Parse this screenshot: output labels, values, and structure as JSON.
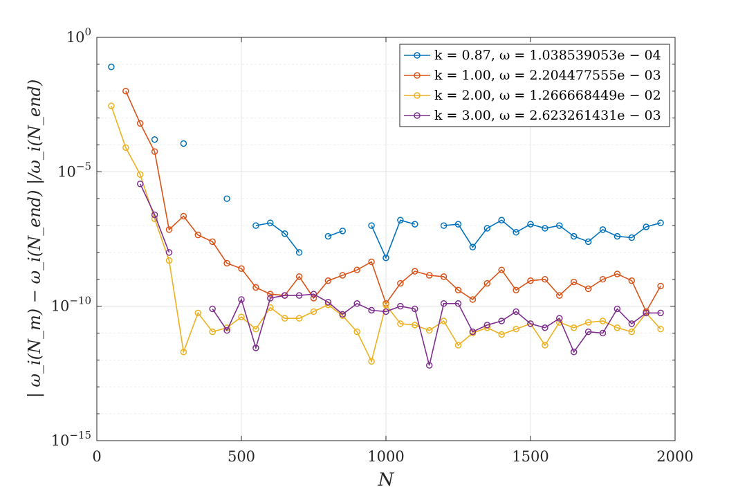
{
  "chart_data": {
    "type": "line",
    "xlabel": "N",
    "ylabel": "| ω_i(N_m) − ω_i(N_end) |/ω_i(N_end)",
    "xlim": [
      0,
      2000
    ],
    "ylim_exp": [
      -15,
      0
    ],
    "yscale": "log",
    "x_ticks": [
      "0",
      "500",
      "1000",
      "1500",
      "2000"
    ],
    "y_ticks": [
      {
        "base": "10",
        "exp": "0"
      },
      {
        "base": "10",
        "exp": "−5"
      },
      {
        "base": "10",
        "exp": "−10"
      },
      {
        "base": "10",
        "exp": "−15"
      }
    ],
    "grid": true,
    "legend_position": "top-right",
    "series": [
      {
        "name": "k = 0.87, ω = 1.038539053e − 04",
        "k": "0.87",
        "omega": "1.038539053e − 04",
        "color": "#0072BD",
        "points": [
          [
            50,
            -1.1
          ],
          [
            200,
            -3.8
          ],
          [
            300,
            -3.95
          ],
          [
            450,
            -6.0
          ],
          [
            550,
            -7.0
          ],
          [
            600,
            -6.9
          ],
          [
            650,
            -7.3
          ],
          [
            700,
            -8.0
          ],
          [
            800,
            -7.4
          ],
          [
            850,
            -7.2
          ],
          [
            950,
            -7.0
          ],
          [
            1000,
            -8.2
          ],
          [
            1050,
            -6.8
          ],
          [
            1100,
            -6.95
          ],
          [
            1200,
            -7.0
          ],
          [
            1250,
            -6.95
          ],
          [
            1300,
            -7.8
          ],
          [
            1350,
            -7.1
          ],
          [
            1400,
            -6.8
          ],
          [
            1450,
            -7.25
          ],
          [
            1500,
            -6.95
          ],
          [
            1550,
            -7.1
          ],
          [
            1600,
            -7.0
          ],
          [
            1650,
            -7.4
          ],
          [
            1700,
            -7.6
          ],
          [
            1750,
            -7.15
          ],
          [
            1800,
            -7.4
          ],
          [
            1850,
            -7.45
          ],
          [
            1900,
            -7.05
          ],
          [
            1950,
            -6.9
          ]
        ]
      },
      {
        "name": "k = 1.00, ω = 2.204477555e − 03",
        "k": "1.00",
        "omega": "2.204477555e − 03",
        "color": "#D95319",
        "points": [
          [
            100,
            -2.0
          ],
          [
            150,
            -3.2
          ],
          [
            200,
            -4.25
          ],
          [
            250,
            -7.15
          ],
          [
            300,
            -6.65
          ],
          [
            350,
            -7.35
          ],
          [
            400,
            -7.6
          ],
          [
            450,
            -8.4
          ],
          [
            500,
            -8.6
          ],
          [
            550,
            -9.3
          ],
          [
            600,
            -9.55
          ],
          [
            650,
            -9.6
          ],
          [
            700,
            -8.9
          ],
          [
            750,
            -9.7
          ],
          [
            800,
            -9.05
          ],
          [
            850,
            -8.85
          ],
          [
            900,
            -8.65
          ],
          [
            950,
            -8.35
          ],
          [
            1000,
            -9.9
          ],
          [
            1050,
            -9.15
          ],
          [
            1100,
            -8.7
          ],
          [
            1150,
            -8.85
          ],
          [
            1200,
            -8.9
          ],
          [
            1250,
            -9.4
          ],
          [
            1300,
            -9.75
          ],
          [
            1350,
            -9.15
          ],
          [
            1400,
            -8.65
          ],
          [
            1450,
            -9.4
          ],
          [
            1500,
            -9.05
          ],
          [
            1550,
            -9.0
          ],
          [
            1600,
            -9.6
          ],
          [
            1650,
            -9.1
          ],
          [
            1700,
            -9.35
          ],
          [
            1750,
            -9.0
          ],
          [
            1800,
            -8.8
          ],
          [
            1850,
            -9.05
          ],
          [
            1900,
            -10.2
          ],
          [
            1950,
            -9.25
          ]
        ]
      },
      {
        "name": "k = 2.00, ω = 1.266668449e − 02",
        "k": "2.00",
        "omega": "1.266668449e − 02",
        "color": "#EDB120",
        "points": [
          [
            50,
            -2.55
          ],
          [
            100,
            -4.1
          ],
          [
            150,
            -5.1
          ],
          [
            200,
            -6.75
          ],
          [
            250,
            -8.3
          ],
          [
            300,
            -11.7
          ],
          [
            350,
            -10.25
          ],
          [
            400,
            -10.95
          ],
          [
            450,
            -10.8
          ],
          [
            500,
            -10.4
          ],
          [
            550,
            -10.85
          ],
          [
            600,
            -10.05
          ],
          [
            650,
            -10.45
          ],
          [
            700,
            -10.45
          ],
          [
            750,
            -10.2
          ],
          [
            800,
            -9.95
          ],
          [
            850,
            -10.35
          ],
          [
            900,
            -10.95
          ],
          [
            950,
            -12.05
          ],
          [
            1000,
            -9.95
          ],
          [
            1050,
            -10.65
          ],
          [
            1100,
            -10.7
          ],
          [
            1150,
            -10.9
          ],
          [
            1200,
            -10.55
          ],
          [
            1250,
            -11.45
          ],
          [
            1300,
            -11.0
          ],
          [
            1350,
            -10.8
          ],
          [
            1400,
            -11.05
          ],
          [
            1450,
            -10.85
          ],
          [
            1500,
            -10.65
          ],
          [
            1550,
            -11.45
          ],
          [
            1600,
            -10.6
          ],
          [
            1650,
            -10.8
          ],
          [
            1700,
            -10.6
          ],
          [
            1750,
            -10.55
          ],
          [
            1800,
            -10.8
          ],
          [
            1850,
            -10.95
          ],
          [
            1900,
            -10.25
          ],
          [
            1950,
            -10.85
          ]
        ]
      },
      {
        "name": "k = 3.00, ω = 2.623261431e − 03",
        "k": "3.00",
        "omega": "2.623261431e − 03",
        "color": "#7E2F8E",
        "points": [
          [
            150,
            -5.45
          ],
          [
            200,
            -6.6
          ],
          [
            250,
            -8.0
          ],
          [
            400,
            -10.1
          ],
          [
            450,
            -10.9
          ],
          [
            500,
            -9.75
          ],
          [
            550,
            -11.55
          ],
          [
            600,
            -9.7
          ],
          [
            650,
            -9.6
          ],
          [
            700,
            -9.6
          ],
          [
            750,
            -9.55
          ],
          [
            800,
            -9.85
          ],
          [
            850,
            -10.3
          ],
          [
            900,
            -9.9
          ],
          [
            950,
            -10.15
          ],
          [
            1000,
            -10.2
          ],
          [
            1050,
            -10.0
          ],
          [
            1100,
            -10.1
          ],
          [
            1150,
            -12.2
          ],
          [
            1200,
            -9.9
          ],
          [
            1250,
            -9.9
          ],
          [
            1300,
            -10.95
          ],
          [
            1350,
            -10.7
          ],
          [
            1400,
            -10.55
          ],
          [
            1450,
            -10.2
          ],
          [
            1500,
            -10.65
          ],
          [
            1550,
            -10.8
          ],
          [
            1600,
            -10.45
          ],
          [
            1650,
            -11.7
          ],
          [
            1700,
            -10.95
          ],
          [
            1750,
            -11.0
          ],
          [
            1800,
            -10.1
          ],
          [
            1850,
            -10.65
          ],
          [
            1900,
            -10.25
          ],
          [
            1950,
            -10.25
          ]
        ]
      }
    ]
  }
}
